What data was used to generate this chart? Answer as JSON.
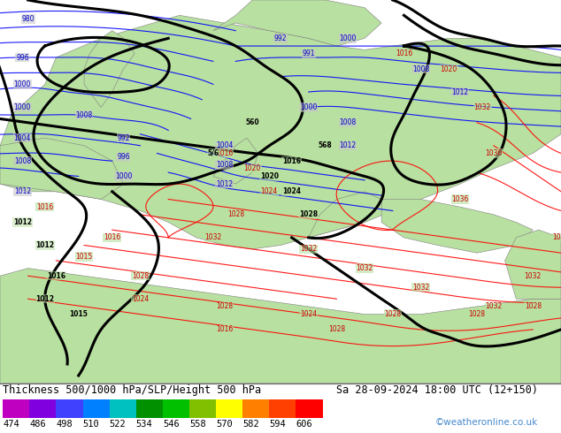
{
  "title_left": "Thickness 500/1000 hPa/SLP/Height 500 hPa",
  "title_right": "Sa 28-09-2024 18:00 UTC (12+150)",
  "credit": "©weatheronline.co.uk",
  "colorbar_values": [
    474,
    486,
    498,
    510,
    522,
    534,
    546,
    558,
    570,
    582,
    594,
    606
  ],
  "colorbar_colors": [
    "#c000c0",
    "#8000e0",
    "#4040ff",
    "#0080ff",
    "#00c0c0",
    "#009000",
    "#00c000",
    "#80c000",
    "#ffff00",
    "#ff8000",
    "#ff4000",
    "#ff0000"
  ],
  "ocean_color": "#c8c8c8",
  "land_color": "#b8e0a0",
  "bottom_bg": "#ffffff",
  "title_fontsize": 8.5,
  "credit_fontsize": 7.5,
  "label_fontsize": 7.5,
  "blue_line_color": "#0000ff",
  "red_line_color": "#ff0000",
  "black_line_color": "#000000",
  "blue_label_color": "#0000cc",
  "red_label_color": "#cc0000"
}
